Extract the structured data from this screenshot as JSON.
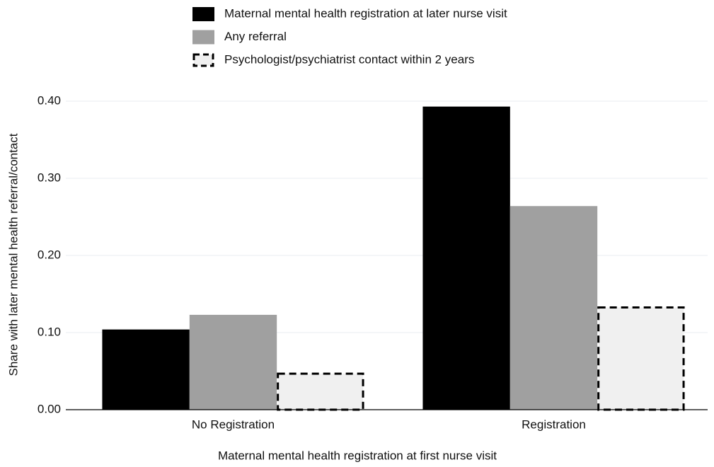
{
  "chart_data": {
    "type": "bar",
    "x_label": "Maternal mental health registration at first nurse visit",
    "y_label": "Share with later mental health referral/contact",
    "categories": [
      "No Registration",
      "Registration"
    ],
    "series": [
      {
        "name": "Maternal mental health registration at later nurse visit",
        "color": "#000000",
        "values": [
          0.104,
          0.393
        ]
      },
      {
        "name": "Any referral",
        "color": "#a0a0a0",
        "values": [
          0.123,
          0.264
        ]
      },
      {
        "name": "Psychologist/psychiatrist contact within 2 years",
        "color": "#f0f0f0",
        "linestyle": "dashed",
        "values": [
          0.048,
          0.134
        ]
      }
    ],
    "ylim": [
      0,
      0.4
    ],
    "yticks": [
      {
        "value": 0,
        "label": "0.00"
      },
      {
        "value": 0.1,
        "label": "0.10"
      },
      {
        "value": 0.2,
        "label": "0.20"
      },
      {
        "value": 0.3,
        "label": "0.30"
      },
      {
        "value": 0.4,
        "label": "0.40"
      }
    ],
    "grid": true,
    "legend": "top"
  }
}
